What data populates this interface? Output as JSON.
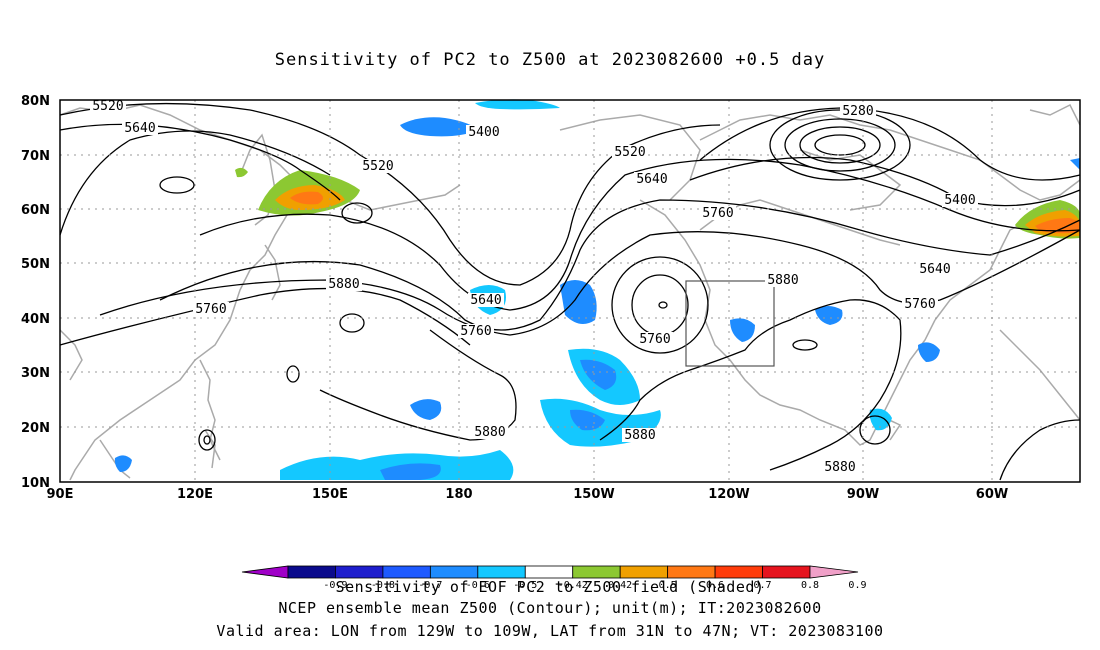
{
  "title": "Sensitivity of PC2 to Z500 at 2023082600 +0.5 day",
  "map": {
    "lat_labels": [
      "80N",
      "70N",
      "60N",
      "50N",
      "40N",
      "30N",
      "20N",
      "10N"
    ],
    "lon_labels": [
      "90E",
      "120E",
      "150E",
      "180",
      "150W",
      "120W",
      "90W",
      "60W"
    ],
    "contour_labels": [
      {
        "text": "5520"
      },
      {
        "text": "5640"
      },
      {
        "text": "5520"
      },
      {
        "text": "5400"
      },
      {
        "text": "5280"
      },
      {
        "text": "5520"
      },
      {
        "text": "5640"
      },
      {
        "text": "5760"
      },
      {
        "text": "5400"
      },
      {
        "text": "5880"
      },
      {
        "text": "5760"
      },
      {
        "text": "5880"
      },
      {
        "text": "5640"
      },
      {
        "text": "5760"
      },
      {
        "text": "5760"
      },
      {
        "text": "5640"
      },
      {
        "text": "5760"
      },
      {
        "text": "5880"
      },
      {
        "text": "5880"
      },
      {
        "text": "5880"
      }
    ],
    "valid_box": {
      "lon": [
        "129W",
        "109W"
      ],
      "lat": [
        "31N",
        "47N"
      ]
    }
  },
  "colorbar": {
    "tick_labels": [
      "-0.9",
      "-0.8",
      "-0.7",
      "-0.6",
      "-0.5",
      "-0.42",
      "0.42",
      "0.5",
      "0.6",
      "0.7",
      "0.8",
      "0.9"
    ],
    "colors": [
      "#a000c8",
      "#0a0a8c",
      "#1e1ecd",
      "#1e5aff",
      "#1e8cff",
      "#14c8ff",
      "#ffffff",
      "#8cc832",
      "#f0a000",
      "#ff7814",
      "#ff3c0a",
      "#e6141e",
      "#f0a0c8"
    ]
  },
  "captions": {
    "line1": "Sensitivity of EOF PC2 to Z500 field (Shaded)",
    "line2": "NCEP ensemble mean Z500 (Contour); unit(m); IT:2023082600",
    "line3": "Valid area: LON from 129W to 109W, LAT from 31N to 47N; VT: 2023083100"
  }
}
